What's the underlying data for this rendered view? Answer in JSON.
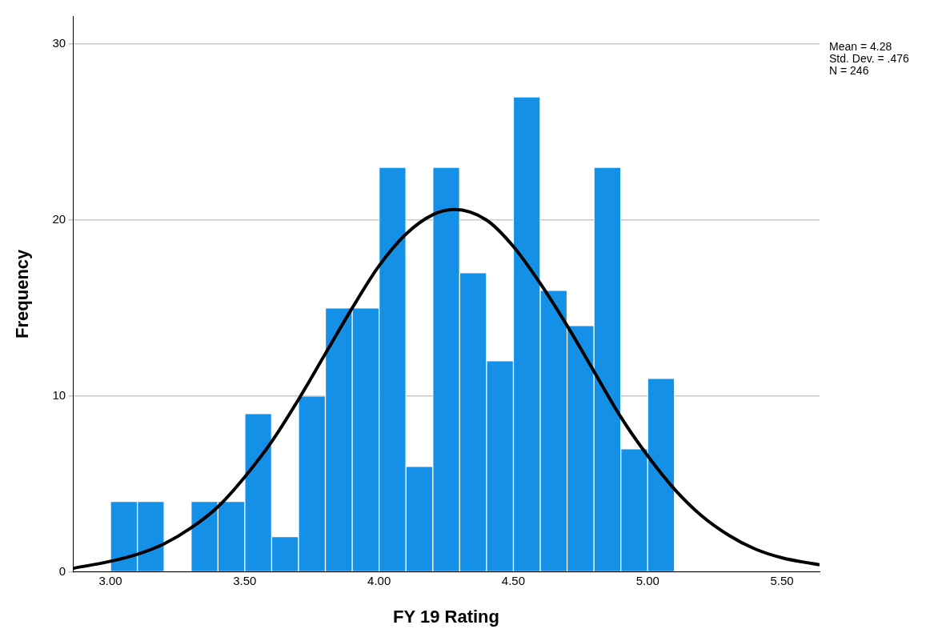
{
  "chart_data": {
    "type": "histogram",
    "xlabel": "FY 19 Rating",
    "ylabel": "Frequency",
    "bins": [
      3.0,
      3.1,
      3.2,
      3.3,
      3.4,
      3.5,
      3.6,
      3.7,
      3.8,
      3.9,
      4.0,
      4.1,
      4.2,
      4.3,
      4.4,
      4.5,
      4.6,
      4.7,
      4.8,
      4.9,
      5.0,
      5.1
    ],
    "values": [
      4,
      4,
      0,
      4,
      4,
      9,
      2,
      10,
      15,
      15,
      23,
      6,
      23,
      17,
      12,
      27,
      16,
      14,
      23,
      7,
      11
    ],
    "color": "#1490e6",
    "series": [
      {
        "type": "line",
        "color": "#000000",
        "x": [
          2.86,
          3.0,
          3.1,
          3.2,
          3.3,
          3.4,
          3.5,
          3.6,
          3.7,
          3.8,
          3.9,
          4.0,
          4.1,
          4.2,
          4.28,
          4.4,
          4.5,
          4.6,
          4.7,
          4.8,
          4.9,
          5.0,
          5.1,
          5.2,
          5.3,
          5.4,
          5.5,
          5.64
        ],
        "values": [
          0.2,
          0.6,
          1.0,
          1.6,
          2.5,
          3.7,
          5.4,
          7.4,
          9.8,
          12.4,
          15.0,
          17.4,
          19.2,
          20.3,
          20.6,
          20.0,
          18.5,
          16.4,
          14.0,
          11.4,
          8.8,
          6.6,
          4.7,
          3.2,
          2.1,
          1.3,
          0.8,
          0.4
        ]
      }
    ],
    "xlim": [
      2.86,
      5.64
    ],
    "xticks": [
      {
        "value": 3.0,
        "label": "3.00"
      },
      {
        "value": 3.5,
        "label": "3.50"
      },
      {
        "value": 4.0,
        "label": "4.00"
      },
      {
        "value": 4.5,
        "label": "4.50"
      },
      {
        "value": 5.0,
        "label": "5.00"
      },
      {
        "value": 5.5,
        "label": "5.50"
      }
    ],
    "ylim": [
      0,
      31.6
    ],
    "yticks": [
      0,
      10,
      20,
      30
    ],
    "grid": "y",
    "legend": false,
    "marker": "none",
    "line_style": "solid",
    "annotations": [
      "Mean = 4.28",
      "Std. Dev. = .476",
      "N = 246"
    ]
  }
}
